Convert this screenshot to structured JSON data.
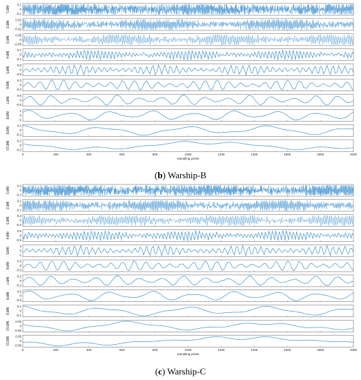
{
  "figure": {
    "panels": [
      {
        "caption_letter": "b",
        "caption_text": " Warship-B"
      },
      {
        "caption_letter": "c",
        "caption_text": " Warship-C"
      }
    ]
  },
  "chart_data": [
    {
      "type": "line",
      "title": "(b) Warship-B",
      "xlabel": "Sampling points",
      "xlim": [
        0,
        2000
      ],
      "xticks": [
        0,
        200,
        400,
        600,
        800,
        1000,
        1200,
        1400,
        1600,
        1800,
        2000
      ],
      "color": "#3a8fd0",
      "series": [
        {
          "name": "IMF1",
          "yticks": [
            "0.1",
            "0",
            "-0.1"
          ],
          "amplitude": 0.06,
          "cycles": 480,
          "noise": 0.9
        },
        {
          "name": "IMF2",
          "yticks": [
            "0.02",
            "0",
            "-0.02"
          ],
          "amplitude": 0.012,
          "cycles": 300,
          "noise": 0.6
        },
        {
          "name": "IMF3",
          "yticks": [
            "0.05",
            "0",
            "-0.05"
          ],
          "amplitude": 0.03,
          "cycles": 180,
          "noise": 0.5
        },
        {
          "name": "IMF4",
          "yticks": [
            "0.1",
            "0",
            "-0.1"
          ],
          "amplitude": 0.05,
          "cycles": 95,
          "noise": 0.3
        },
        {
          "name": "IMF5",
          "yticks": [
            "0.5",
            "0",
            "-0.5"
          ],
          "amplitude": 0.3,
          "cycles": 55,
          "noise": 0.2
        },
        {
          "name": "IMF6",
          "yticks": [
            "0.2",
            "0",
            "-0.2"
          ],
          "amplitude": 0.14,
          "cycles": 28,
          "noise": 0.15
        },
        {
          "name": "IMF7",
          "yticks": [
            "0.5",
            "0",
            "-0.5"
          ],
          "amplitude": 0.3,
          "cycles": 15,
          "noise": 0.1
        },
        {
          "name": "IMF8",
          "yticks": [
            "1",
            "0",
            "-1"
          ],
          "amplitude": 0.6,
          "cycles": 8,
          "noise": 0.05
        },
        {
          "name": "IMF9",
          "yticks": [
            "0.2",
            "0",
            "-0.2"
          ],
          "amplitude": 0.12,
          "cycles": 4,
          "noise": 0
        },
        {
          "name": "IMF10",
          "yticks": [
            "0.2",
            "0",
            "-0.2"
          ],
          "amplitude": 0.1,
          "cycles": 1.5,
          "noise": 0
        }
      ]
    },
    {
      "type": "line",
      "title": "(c) Warship-C",
      "xlabel": "Sampling points",
      "xlim": [
        0,
        2000
      ],
      "xticks": [
        0,
        200,
        400,
        600,
        800,
        1000,
        1200,
        1400,
        1600,
        1800,
        2000
      ],
      "color": "#3a8fd0",
      "series": [
        {
          "name": "IMF1",
          "yticks": [
            "0.2",
            "0",
            "-0.2"
          ],
          "amplitude": 0.12,
          "cycles": 480,
          "noise": 0.9
        },
        {
          "name": "IMF2",
          "yticks": [
            "0.1",
            "0",
            "-0.1"
          ],
          "amplitude": 0.05,
          "cycles": 300,
          "noise": 0.6
        },
        {
          "name": "IMF3",
          "yticks": [
            "0.2",
            "0",
            "-0.2"
          ],
          "amplitude": 0.1,
          "cycles": 180,
          "noise": 0.5
        },
        {
          "name": "IMF4",
          "yticks": [
            "0.5",
            "0",
            "-0.5"
          ],
          "amplitude": 0.25,
          "cycles": 95,
          "noise": 0.3
        },
        {
          "name": "IMF5",
          "yticks": [
            "1",
            "0",
            "-1"
          ],
          "amplitude": 0.5,
          "cycles": 55,
          "noise": 0.2
        },
        {
          "name": "IMF6",
          "yticks": [
            "0.5",
            "0",
            "-0.5"
          ],
          "amplitude": 0.3,
          "cycles": 28,
          "noise": 0.15
        },
        {
          "name": "IMF7",
          "yticks": [
            "0.2",
            "0",
            "-0.2"
          ],
          "amplitude": 0.12,
          "cycles": 15,
          "noise": 0.1
        },
        {
          "name": "IMF8",
          "yticks": [
            "0.5",
            "0",
            "-0.5"
          ],
          "amplitude": 0.3,
          "cycles": 8,
          "noise": 0.05
        },
        {
          "name": "IMF9",
          "yticks": [
            "0.1",
            "0",
            "-0.1"
          ],
          "amplitude": 0.06,
          "cycles": 4,
          "noise": 0
        },
        {
          "name": "IMF10",
          "yticks": [
            "0.05",
            "0",
            "-0.05"
          ],
          "amplitude": 0.03,
          "cycles": 2.5,
          "noise": 0
        },
        {
          "name": "IMF11",
          "yticks": [
            "0.05",
            "0",
            "-0.05"
          ],
          "amplitude": 0.03,
          "cycles": 1,
          "noise": 0
        }
      ]
    }
  ]
}
